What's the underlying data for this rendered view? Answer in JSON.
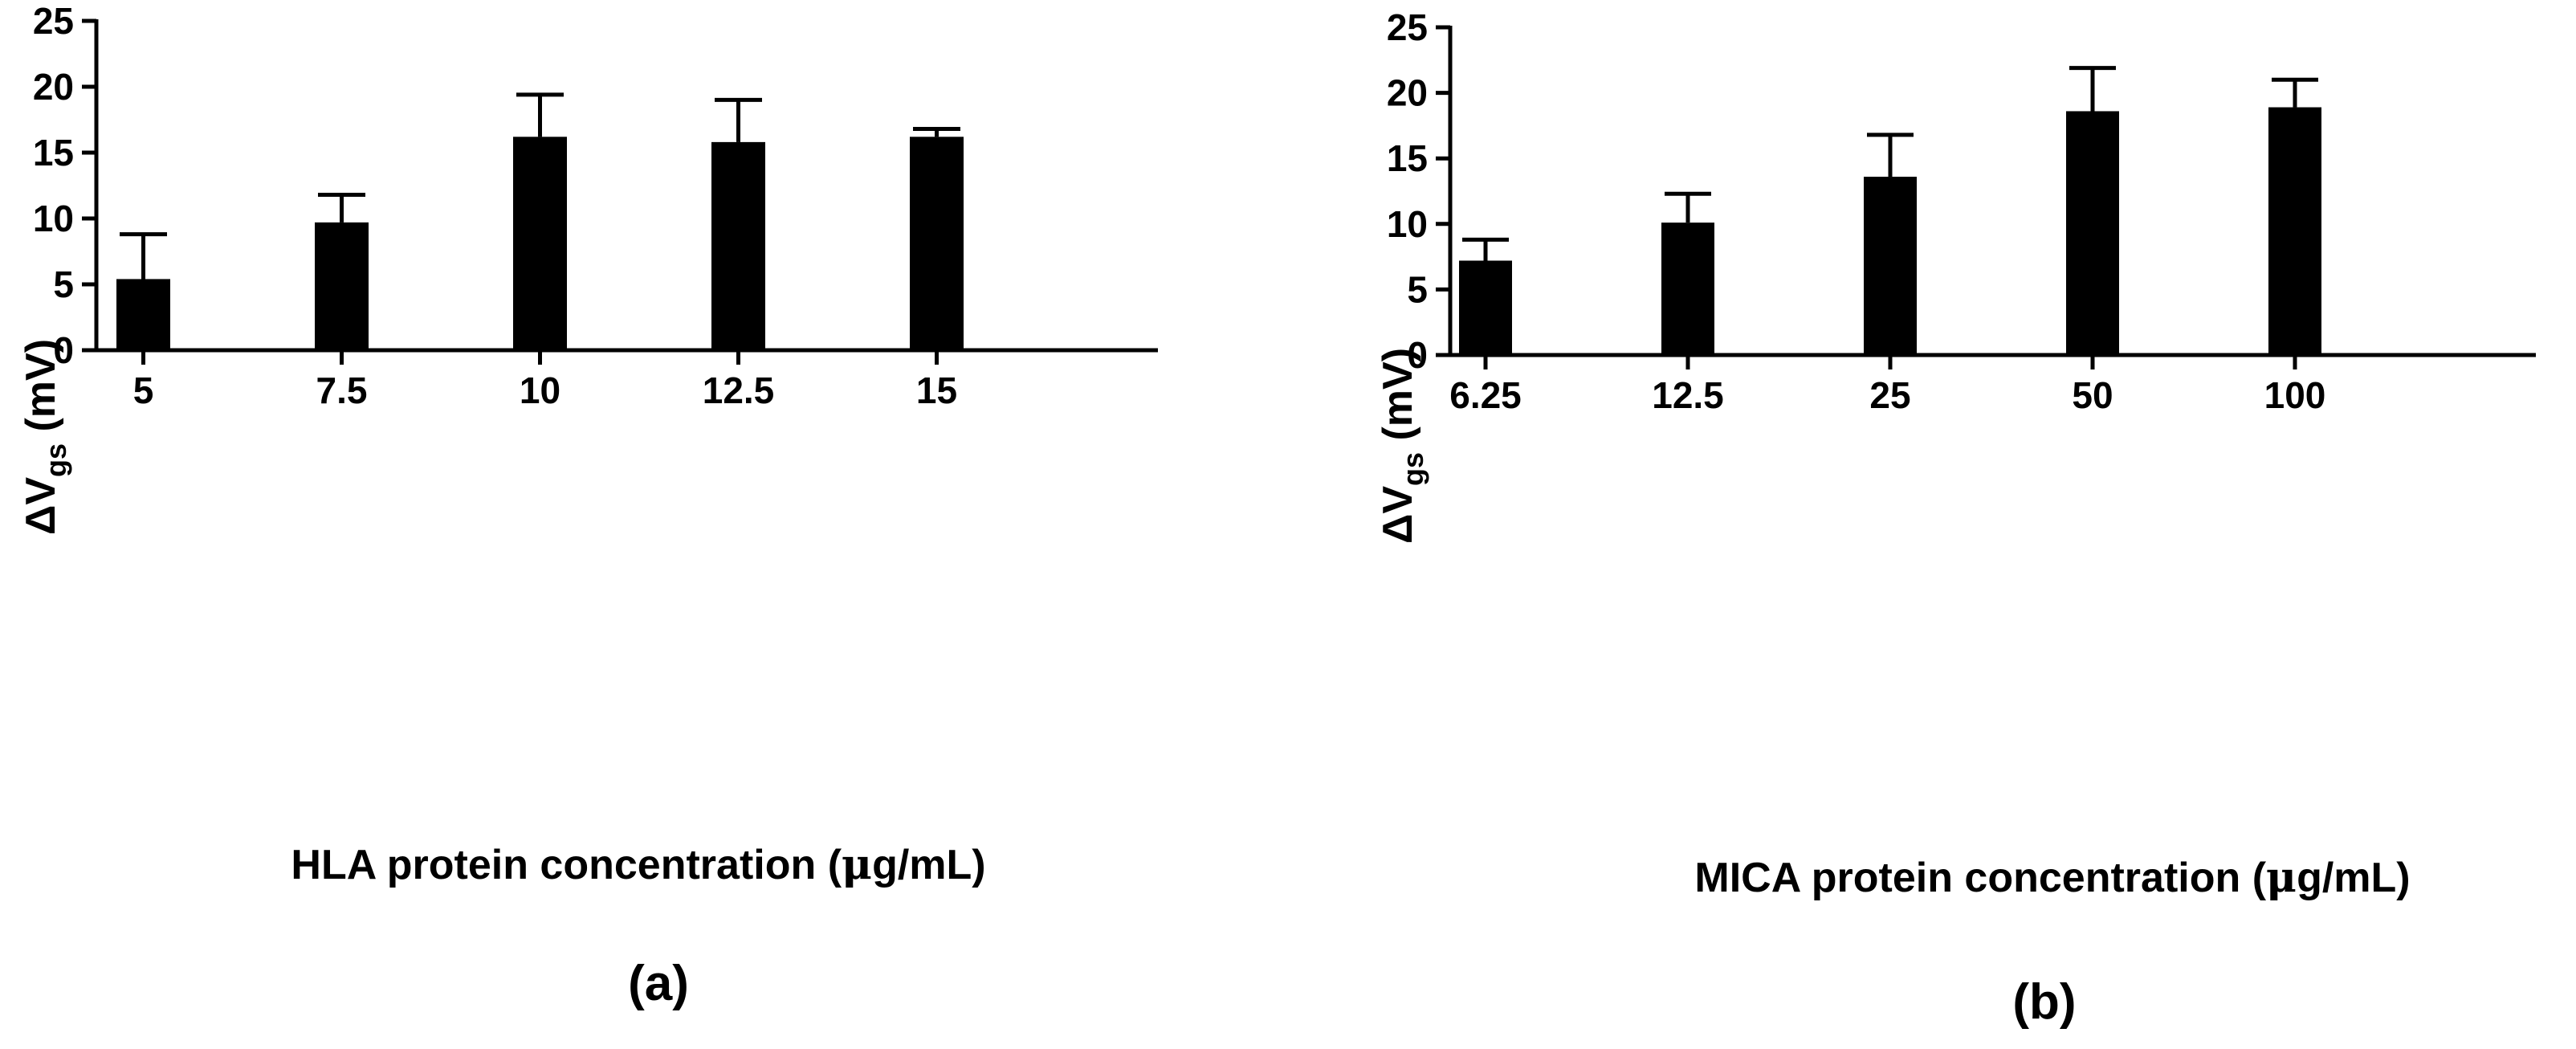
{
  "chart_data": [
    {
      "type": "bar",
      "panel_label": "(a)",
      "ylabel": {
        "delta": "Δ",
        "main": "V",
        "sub": "gs",
        "unit": " (mV)"
      },
      "xlabel": {
        "pre": "HLA protein concentration (",
        "mu": "μ",
        "post": "g/mL)"
      },
      "categories": [
        "5",
        "7.5",
        "10",
        "12.5",
        "15"
      ],
      "values": [
        5.4,
        9.7,
        16.2,
        15.8,
        16.2
      ],
      "errors": [
        3.4,
        2.1,
        3.2,
        3.2,
        0.6
      ],
      "ylim": [
        0,
        25
      ],
      "yticks": [
        "0",
        "5",
        "10",
        "15",
        "20",
        "25"
      ],
      "bar_color": "#000000",
      "grid": false
    },
    {
      "type": "bar",
      "panel_label": "(b)",
      "ylabel": {
        "delta": "Δ",
        "main": "V",
        "sub": "gs",
        "unit": " (mV)"
      },
      "xlabel": {
        "pre": "MICA protein concentration (",
        "mu": "μ",
        "post": "g/mL)"
      },
      "categories": [
        "6.25",
        "12.5",
        "25",
        "50",
        "100"
      ],
      "values": [
        7.2,
        10.1,
        13.6,
        18.6,
        18.9
      ],
      "errors": [
        1.6,
        2.2,
        3.2,
        3.3,
        2.1
      ],
      "ylim": [
        0,
        25
      ],
      "yticks": [
        "0",
        "5",
        "10",
        "15",
        "20",
        "25"
      ],
      "bar_color": "#000000",
      "grid": false
    }
  ]
}
